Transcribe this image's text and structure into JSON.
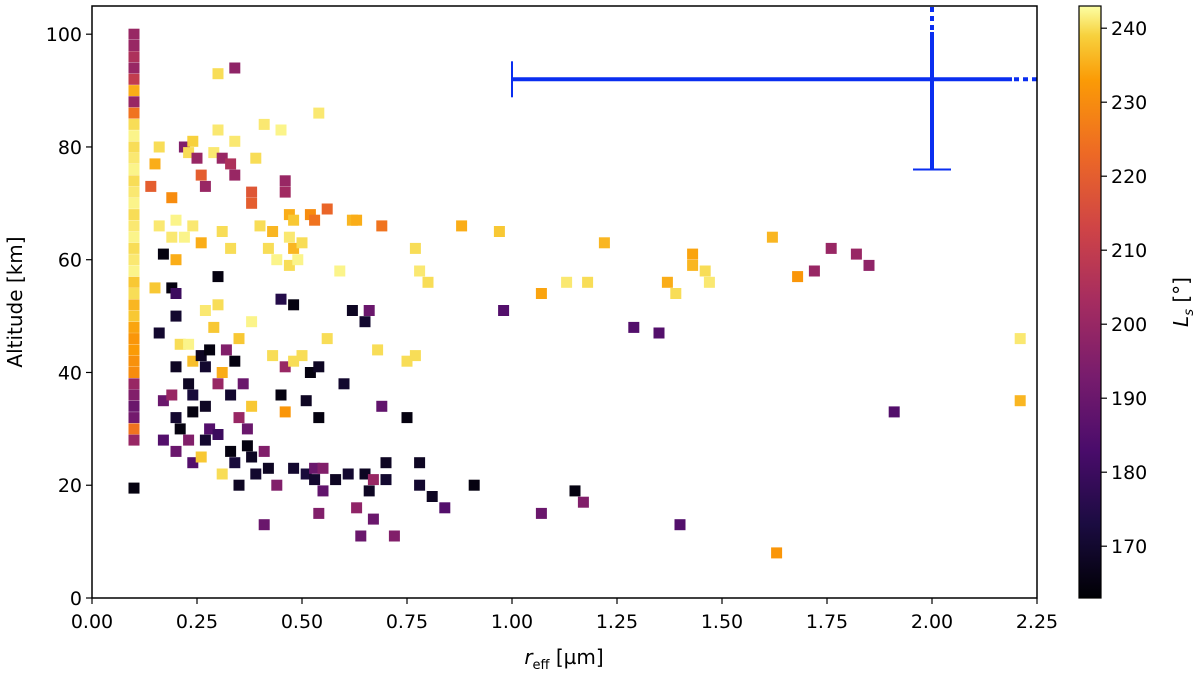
{
  "chart_data": {
    "type": "scatter",
    "xlabel": "r_eff [µm]",
    "xlabel_main": "r",
    "xlabel_sub": "eff",
    "xlabel_unit": " [µm]",
    "ylabel": "Altitude [km]",
    "xlim": [
      0,
      2.25
    ],
    "ylim": [
      0,
      105
    ],
    "x_ticks": [
      0.0,
      0.25,
      0.5,
      0.75,
      1.0,
      1.25,
      1.5,
      1.75,
      2.0,
      2.25
    ],
    "x_tick_labels": [
      "0.00",
      "0.25",
      "0.50",
      "0.75",
      "1.00",
      "1.25",
      "1.50",
      "1.75",
      "2.00",
      "2.25"
    ],
    "y_ticks": [
      0,
      20,
      40,
      60,
      80,
      100
    ],
    "y_tick_labels": [
      "0",
      "20",
      "40",
      "60",
      "80",
      "100"
    ],
    "colorbar": {
      "label": "L_s [°]",
      "label_main": "L",
      "label_sub": "s",
      "label_unit": " [°]",
      "range": [
        163,
        243
      ],
      "ticks": [
        170,
        180,
        190,
        200,
        210,
        220,
        230,
        240
      ],
      "tick_labels": [
        "170",
        "180",
        "190",
        "200",
        "210",
        "220",
        "230",
        "240"
      ],
      "colormap": "inferno"
    },
    "error_bar": {
      "x": 2.0,
      "y": 92,
      "x_low": 1.0,
      "y_low": 76,
      "color": "#0a2ef0"
    },
    "points": [
      {
        "x": 0.1,
        "y": 100,
        "c": 200
      },
      {
        "x": 0.1,
        "y": 98,
        "c": 200
      },
      {
        "x": 0.1,
        "y": 96,
        "c": 205
      },
      {
        "x": 0.1,
        "y": 94,
        "c": 200
      },
      {
        "x": 0.1,
        "y": 92,
        "c": 210
      },
      {
        "x": 0.1,
        "y": 90,
        "c": 235
      },
      {
        "x": 0.1,
        "y": 88,
        "c": 200
      },
      {
        "x": 0.1,
        "y": 86,
        "c": 225
      },
      {
        "x": 0.1,
        "y": 84,
        "c": 240
      },
      {
        "x": 0.1,
        "y": 82,
        "c": 242
      },
      {
        "x": 0.1,
        "y": 80,
        "c": 240
      },
      {
        "x": 0.1,
        "y": 78,
        "c": 241
      },
      {
        "x": 0.1,
        "y": 76,
        "c": 242
      },
      {
        "x": 0.1,
        "y": 74,
        "c": 240
      },
      {
        "x": 0.1,
        "y": 72,
        "c": 241
      },
      {
        "x": 0.1,
        "y": 70,
        "c": 242
      },
      {
        "x": 0.1,
        "y": 68,
        "c": 240
      },
      {
        "x": 0.1,
        "y": 66,
        "c": 241
      },
      {
        "x": 0.1,
        "y": 64,
        "c": 242
      },
      {
        "x": 0.1,
        "y": 62,
        "c": 240
      },
      {
        "x": 0.1,
        "y": 60,
        "c": 241
      },
      {
        "x": 0.1,
        "y": 58,
        "c": 242
      },
      {
        "x": 0.1,
        "y": 56,
        "c": 238
      },
      {
        "x": 0.1,
        "y": 54,
        "c": 240
      },
      {
        "x": 0.1,
        "y": 52,
        "c": 236
      },
      {
        "x": 0.1,
        "y": 50,
        "c": 238
      },
      {
        "x": 0.1,
        "y": 48,
        "c": 234
      },
      {
        "x": 0.1,
        "y": 46,
        "c": 232
      },
      {
        "x": 0.1,
        "y": 44,
        "c": 233
      },
      {
        "x": 0.1,
        "y": 42,
        "c": 231
      },
      {
        "x": 0.1,
        "y": 40,
        "c": 230
      },
      {
        "x": 0.1,
        "y": 38,
        "c": 200
      },
      {
        "x": 0.1,
        "y": 36,
        "c": 195
      },
      {
        "x": 0.1,
        "y": 34,
        "c": 190
      },
      {
        "x": 0.1,
        "y": 32,
        "c": 192
      },
      {
        "x": 0.1,
        "y": 30,
        "c": 225
      },
      {
        "x": 0.1,
        "y": 28,
        "c": 200
      },
      {
        "x": 0.1,
        "y": 19.5,
        "c": 165
      },
      {
        "x": 0.14,
        "y": 73,
        "c": 220
      },
      {
        "x": 0.15,
        "y": 77,
        "c": 235
      },
      {
        "x": 0.16,
        "y": 80,
        "c": 240
      },
      {
        "x": 0.16,
        "y": 66,
        "c": 241
      },
      {
        "x": 0.17,
        "y": 61,
        "c": 165
      },
      {
        "x": 0.15,
        "y": 55,
        "c": 238
      },
      {
        "x": 0.16,
        "y": 47,
        "c": 170
      },
      {
        "x": 0.17,
        "y": 35,
        "c": 190
      },
      {
        "x": 0.17,
        "y": 28,
        "c": 185
      },
      {
        "x": 0.19,
        "y": 71,
        "c": 230
      },
      {
        "x": 0.19,
        "y": 64,
        "c": 241
      },
      {
        "x": 0.2,
        "y": 60,
        "c": 235
      },
      {
        "x": 0.2,
        "y": 67,
        "c": 242
      },
      {
        "x": 0.19,
        "y": 55,
        "c": 165
      },
      {
        "x": 0.2,
        "y": 54,
        "c": 180
      },
      {
        "x": 0.2,
        "y": 50,
        "c": 170
      },
      {
        "x": 0.21,
        "y": 45,
        "c": 240
      },
      {
        "x": 0.2,
        "y": 41,
        "c": 168
      },
      {
        "x": 0.19,
        "y": 36,
        "c": 200
      },
      {
        "x": 0.2,
        "y": 32,
        "c": 170
      },
      {
        "x": 0.21,
        "y": 30,
        "c": 165
      },
      {
        "x": 0.2,
        "y": 26,
        "c": 190
      },
      {
        "x": 0.22,
        "y": 80,
        "c": 195
      },
      {
        "x": 0.23,
        "y": 79,
        "c": 240
      },
      {
        "x": 0.24,
        "y": 81,
        "c": 239
      },
      {
        "x": 0.22,
        "y": 64,
        "c": 242
      },
      {
        "x": 0.24,
        "y": 66,
        "c": 241
      },
      {
        "x": 0.23,
        "y": 45,
        "c": 242
      },
      {
        "x": 0.24,
        "y": 42,
        "c": 237
      },
      {
        "x": 0.23,
        "y": 38,
        "c": 168
      },
      {
        "x": 0.24,
        "y": 36,
        "c": 172
      },
      {
        "x": 0.24,
        "y": 33,
        "c": 165
      },
      {
        "x": 0.23,
        "y": 28,
        "c": 195
      },
      {
        "x": 0.24,
        "y": 24,
        "c": 185
      },
      {
        "x": 0.25,
        "y": 78,
        "c": 200
      },
      {
        "x": 0.26,
        "y": 75,
        "c": 220
      },
      {
        "x": 0.27,
        "y": 73,
        "c": 200
      },
      {
        "x": 0.26,
        "y": 63,
        "c": 235
      },
      {
        "x": 0.27,
        "y": 51,
        "c": 241
      },
      {
        "x": 0.26,
        "y": 43,
        "c": 168
      },
      {
        "x": 0.27,
        "y": 41,
        "c": 170
      },
      {
        "x": 0.28,
        "y": 44,
        "c": 165
      },
      {
        "x": 0.27,
        "y": 34,
        "c": 168
      },
      {
        "x": 0.27,
        "y": 28,
        "c": 170
      },
      {
        "x": 0.26,
        "y": 25,
        "c": 238
      },
      {
        "x": 0.28,
        "y": 30,
        "c": 185
      },
      {
        "x": 0.29,
        "y": 79,
        "c": 241
      },
      {
        "x": 0.29,
        "y": 48,
        "c": 238
      },
      {
        "x": 0.3,
        "y": 93,
        "c": 240
      },
      {
        "x": 0.3,
        "y": 83,
        "c": 241
      },
      {
        "x": 0.31,
        "y": 78,
        "c": 200
      },
      {
        "x": 0.31,
        "y": 65,
        "c": 240
      },
      {
        "x": 0.3,
        "y": 57,
        "c": 165
      },
      {
        "x": 0.3,
        "y": 52,
        "c": 240
      },
      {
        "x": 0.31,
        "y": 40,
        "c": 235
      },
      {
        "x": 0.3,
        "y": 38,
        "c": 200
      },
      {
        "x": 0.3,
        "y": 29,
        "c": 180
      },
      {
        "x": 0.31,
        "y": 22,
        "c": 240
      },
      {
        "x": 0.32,
        "y": 44,
        "c": 195
      },
      {
        "x": 0.33,
        "y": 77,
        "c": 205
      },
      {
        "x": 0.34,
        "y": 75,
        "c": 200
      },
      {
        "x": 0.33,
        "y": 62,
        "c": 240
      },
      {
        "x": 0.34,
        "y": 94,
        "c": 198
      },
      {
        "x": 0.34,
        "y": 81,
        "c": 241
      },
      {
        "x": 0.34,
        "y": 42,
        "c": 165
      },
      {
        "x": 0.33,
        "y": 36,
        "c": 170
      },
      {
        "x": 0.33,
        "y": 26,
        "c": 165
      },
      {
        "x": 0.34,
        "y": 24,
        "c": 172
      },
      {
        "x": 0.35,
        "y": 46,
        "c": 238
      },
      {
        "x": 0.35,
        "y": 32,
        "c": 200
      },
      {
        "x": 0.36,
        "y": 38,
        "c": 190
      },
      {
        "x": 0.35,
        "y": 20,
        "c": 168
      },
      {
        "x": 0.37,
        "y": 30,
        "c": 190
      },
      {
        "x": 0.37,
        "y": 27,
        "c": 165
      },
      {
        "x": 0.38,
        "y": 72,
        "c": 218
      },
      {
        "x": 0.38,
        "y": 70,
        "c": 220
      },
      {
        "x": 0.39,
        "y": 78,
        "c": 240
      },
      {
        "x": 0.38,
        "y": 49,
        "c": 242
      },
      {
        "x": 0.38,
        "y": 34,
        "c": 238
      },
      {
        "x": 0.38,
        "y": 25,
        "c": 168
      },
      {
        "x": 0.39,
        "y": 22,
        "c": 170
      },
      {
        "x": 0.4,
        "y": 66,
        "c": 240
      },
      {
        "x": 0.41,
        "y": 84,
        "c": 241
      },
      {
        "x": 0.41,
        "y": 26,
        "c": 195
      },
      {
        "x": 0.41,
        "y": 13,
        "c": 190
      },
      {
        "x": 0.42,
        "y": 62,
        "c": 240
      },
      {
        "x": 0.43,
        "y": 65,
        "c": 236
      },
      {
        "x": 0.42,
        "y": 23,
        "c": 168
      },
      {
        "x": 0.43,
        "y": 43,
        "c": 240
      },
      {
        "x": 0.44,
        "y": 60,
        "c": 242
      },
      {
        "x": 0.44,
        "y": 20,
        "c": 195
      },
      {
        "x": 0.45,
        "y": 83,
        "c": 242
      },
      {
        "x": 0.45,
        "y": 36,
        "c": 165
      },
      {
        "x": 0.45,
        "y": 53,
        "c": 175
      },
      {
        "x": 0.46,
        "y": 74,
        "c": 200
      },
      {
        "x": 0.46,
        "y": 72,
        "c": 202
      },
      {
        "x": 0.46,
        "y": 41,
        "c": 200
      },
      {
        "x": 0.46,
        "y": 33,
        "c": 232
      },
      {
        "x": 0.47,
        "y": 68,
        "c": 235
      },
      {
        "x": 0.47,
        "y": 64,
        "c": 241
      },
      {
        "x": 0.47,
        "y": 59,
        "c": 240
      },
      {
        "x": 0.48,
        "y": 67,
        "c": 238
      },
      {
        "x": 0.48,
        "y": 62,
        "c": 236
      },
      {
        "x": 0.48,
        "y": 52,
        "c": 165
      },
      {
        "x": 0.48,
        "y": 42,
        "c": 240
      },
      {
        "x": 0.48,
        "y": 23,
        "c": 170
      },
      {
        "x": 0.49,
        "y": 60,
        "c": 242
      },
      {
        "x": 0.5,
        "y": 63,
        "c": 240
      },
      {
        "x": 0.5,
        "y": 43,
        "c": 240
      },
      {
        "x": 0.51,
        "y": 35,
        "c": 168
      },
      {
        "x": 0.51,
        "y": 22,
        "c": 172
      },
      {
        "x": 0.52,
        "y": 68,
        "c": 230
      },
      {
        "x": 0.52,
        "y": 40,
        "c": 165
      },
      {
        "x": 0.53,
        "y": 21,
        "c": 170
      },
      {
        "x": 0.53,
        "y": 67,
        "c": 225
      },
      {
        "x": 0.53,
        "y": 23,
        "c": 190
      },
      {
        "x": 0.54,
        "y": 32,
        "c": 165
      },
      {
        "x": 0.54,
        "y": 41,
        "c": 168
      },
      {
        "x": 0.54,
        "y": 86,
        "c": 241
      },
      {
        "x": 0.54,
        "y": 15,
        "c": 195
      },
      {
        "x": 0.55,
        "y": 23,
        "c": 195
      },
      {
        "x": 0.55,
        "y": 19,
        "c": 188
      },
      {
        "x": 0.56,
        "y": 69,
        "c": 222
      },
      {
        "x": 0.56,
        "y": 46,
        "c": 240
      },
      {
        "x": 0.58,
        "y": 21,
        "c": 168
      },
      {
        "x": 0.59,
        "y": 58,
        "c": 242
      },
      {
        "x": 0.6,
        "y": 38,
        "c": 170
      },
      {
        "x": 0.61,
        "y": 22,
        "c": 170
      },
      {
        "x": 0.62,
        "y": 67,
        "c": 236
      },
      {
        "x": 0.62,
        "y": 51,
        "c": 168
      },
      {
        "x": 0.63,
        "y": 67,
        "c": 235
      },
      {
        "x": 0.63,
        "y": 16,
        "c": 198
      },
      {
        "x": 0.64,
        "y": 11,
        "c": 190
      },
      {
        "x": 0.65,
        "y": 22,
        "c": 168
      },
      {
        "x": 0.65,
        "y": 49,
        "c": 170
      },
      {
        "x": 0.66,
        "y": 51,
        "c": 190
      },
      {
        "x": 0.66,
        "y": 19,
        "c": 168
      },
      {
        "x": 0.67,
        "y": 21,
        "c": 200
      },
      {
        "x": 0.67,
        "y": 14,
        "c": 190
      },
      {
        "x": 0.68,
        "y": 44,
        "c": 240
      },
      {
        "x": 0.69,
        "y": 66,
        "c": 225
      },
      {
        "x": 0.69,
        "y": 34,
        "c": 188
      },
      {
        "x": 0.7,
        "y": 24,
        "c": 168
      },
      {
        "x": 0.7,
        "y": 21,
        "c": 170
      },
      {
        "x": 0.72,
        "y": 11,
        "c": 195
      },
      {
        "x": 0.75,
        "y": 42,
        "c": 240
      },
      {
        "x": 0.75,
        "y": 32,
        "c": 165
      },
      {
        "x": 0.77,
        "y": 62,
        "c": 240
      },
      {
        "x": 0.77,
        "y": 43,
        "c": 240
      },
      {
        "x": 0.78,
        "y": 58,
        "c": 241
      },
      {
        "x": 0.78,
        "y": 24,
        "c": 168
      },
      {
        "x": 0.78,
        "y": 20,
        "c": 170
      },
      {
        "x": 0.8,
        "y": 56,
        "c": 240
      },
      {
        "x": 0.81,
        "y": 18,
        "c": 168
      },
      {
        "x": 0.84,
        "y": 16,
        "c": 185
      },
      {
        "x": 0.88,
        "y": 66,
        "c": 235
      },
      {
        "x": 0.91,
        "y": 20,
        "c": 165
      },
      {
        "x": 0.97,
        "y": 65,
        "c": 238
      },
      {
        "x": 0.98,
        "y": 51,
        "c": 185
      },
      {
        "x": 1.07,
        "y": 54,
        "c": 234
      },
      {
        "x": 1.07,
        "y": 15,
        "c": 190
      },
      {
        "x": 1.13,
        "y": 56,
        "c": 241
      },
      {
        "x": 1.15,
        "y": 19,
        "c": 165
      },
      {
        "x": 1.17,
        "y": 17,
        "c": 195
      },
      {
        "x": 1.18,
        "y": 56,
        "c": 240
      },
      {
        "x": 1.22,
        "y": 63,
        "c": 236
      },
      {
        "x": 1.29,
        "y": 48,
        "c": 185
      },
      {
        "x": 1.35,
        "y": 47,
        "c": 185
      },
      {
        "x": 1.37,
        "y": 56,
        "c": 235
      },
      {
        "x": 1.39,
        "y": 54,
        "c": 240
      },
      {
        "x": 1.4,
        "y": 13,
        "c": 185
      },
      {
        "x": 1.43,
        "y": 61,
        "c": 234
      },
      {
        "x": 1.43,
        "y": 59,
        "c": 236
      },
      {
        "x": 1.46,
        "y": 58,
        "c": 240
      },
      {
        "x": 1.47,
        "y": 56,
        "c": 241
      },
      {
        "x": 1.62,
        "y": 64,
        "c": 236
      },
      {
        "x": 1.63,
        "y": 8,
        "c": 232
      },
      {
        "x": 1.68,
        "y": 57,
        "c": 232
      },
      {
        "x": 1.72,
        "y": 58,
        "c": 200
      },
      {
        "x": 1.76,
        "y": 62,
        "c": 200
      },
      {
        "x": 1.82,
        "y": 61,
        "c": 200
      },
      {
        "x": 1.85,
        "y": 59,
        "c": 198
      },
      {
        "x": 1.91,
        "y": 33,
        "c": 185
      },
      {
        "x": 2.21,
        "y": 46,
        "c": 241
      },
      {
        "x": 2.21,
        "y": 35,
        "c": 236
      }
    ]
  }
}
